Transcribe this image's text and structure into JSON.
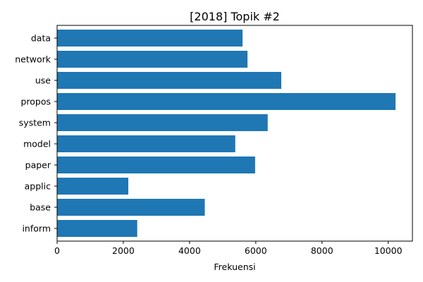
{
  "chart_data": {
    "type": "bar",
    "orientation": "horizontal",
    "title": "[2018] Topik #2",
    "xlabel": "Frekuensi",
    "ylabel": "",
    "categories": [
      "data",
      "network",
      "use",
      "propos",
      "system",
      "model",
      "paper",
      "applic",
      "base",
      "inform"
    ],
    "values": [
      5600,
      5750,
      6770,
      10220,
      6360,
      5380,
      5980,
      2150,
      4460,
      2420
    ],
    "xlim": [
      0,
      10730
    ],
    "xticks": [
      0,
      2000,
      4000,
      6000,
      8000,
      10000
    ],
    "xtick_labels": [
      "0",
      "2000",
      "4000",
      "6000",
      "8000",
      "10000"
    ],
    "grid": false,
    "bar_color": "#1f77b4"
  }
}
